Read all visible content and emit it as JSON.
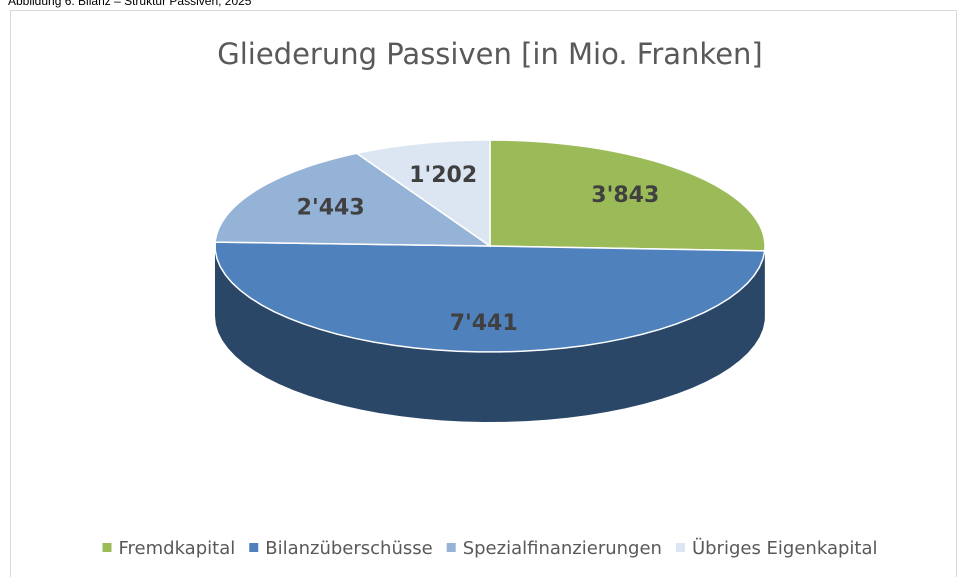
{
  "caption": "Abbildung 6: Bilanz – Struktur Passiven, 2025",
  "chart_data": {
    "type": "pie3d",
    "title": "Gliederung Passiven [in Mio. Franken]",
    "categories": [
      "Fremdkapital",
      "Bilanzüberschüsse",
      "Spezialfinanzierungen",
      "Übriges Eigenkapital"
    ],
    "values": [
      3843,
      7441,
      2443,
      1202
    ],
    "value_labels": [
      "3'843",
      "7'441",
      "2'443",
      "1'202"
    ],
    "colors": [
      "#9bbb59",
      "#4f81bd",
      "#95b3d7",
      "#dce6f2"
    ],
    "legend": "bottom"
  }
}
